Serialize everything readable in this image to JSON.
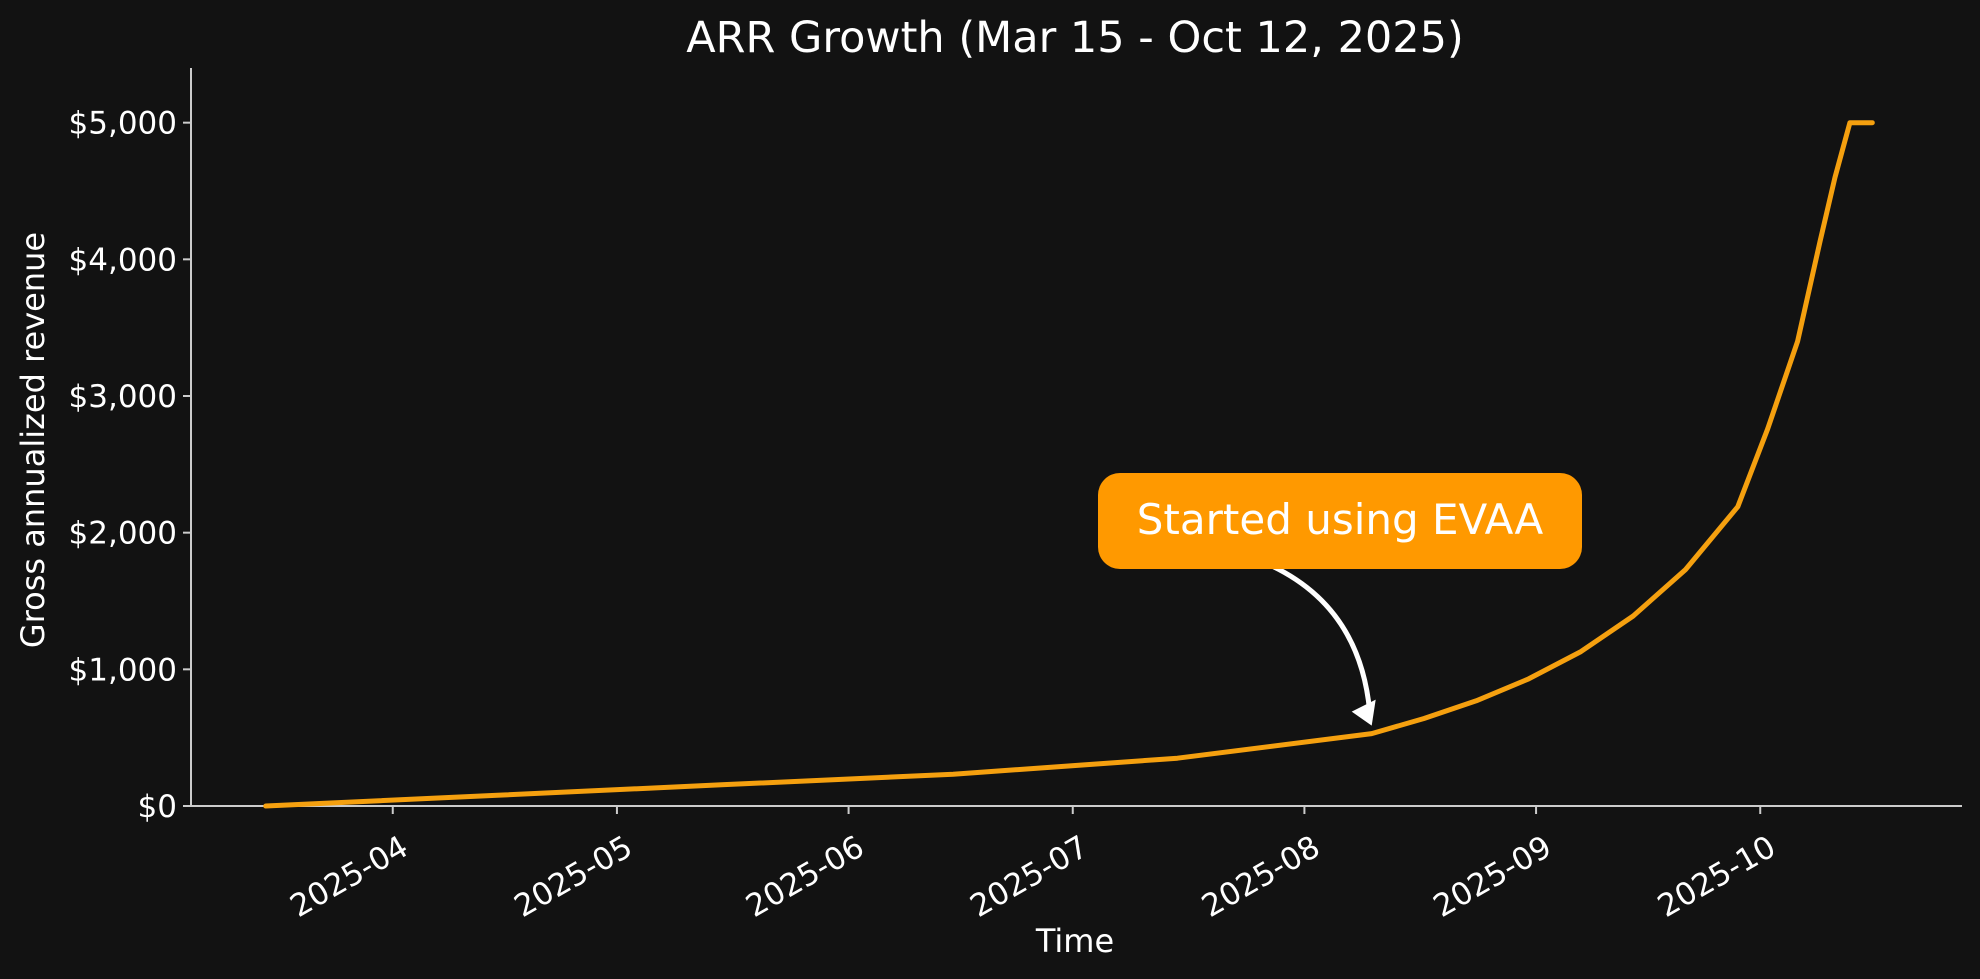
{
  "chart_data": {
    "type": "line",
    "title": "ARR Growth (Mar 15 - Oct 12, 2025)",
    "xlabel": "Time",
    "ylabel": "Gross annualized revenue",
    "x_ticks": [
      "2025-04",
      "2025-05",
      "2025-06",
      "2025-07",
      "2025-08",
      "2025-09",
      "2025-10"
    ],
    "y_ticks": [
      "$0",
      "$1,000",
      "$2,000",
      "$3,000",
      "$4,000",
      "$5,000"
    ],
    "y_tick_values": [
      0,
      1000,
      2000,
      3000,
      4000,
      5000
    ],
    "xlim": [
      "2025-03-05",
      "2025-10-28"
    ],
    "ylim": [
      0,
      5400
    ],
    "grid": false,
    "series": [
      {
        "color": "#f5a00f",
        "points": [
          {
            "x": "2025-03-15",
            "y": 0
          },
          {
            "x": "2025-04-15",
            "y": 78
          },
          {
            "x": "2025-05-15",
            "y": 155
          },
          {
            "x": "2025-06-15",
            "y": 233
          },
          {
            "x": "2025-07-15",
            "y": 350
          },
          {
            "x": "2025-08-10",
            "y": 530
          },
          {
            "x": "2025-08-17",
            "y": 640
          },
          {
            "x": "2025-08-24",
            "y": 770
          },
          {
            "x": "2025-08-31",
            "y": 930
          },
          {
            "x": "2025-09-07",
            "y": 1130
          },
          {
            "x": "2025-09-14",
            "y": 1390
          },
          {
            "x": "2025-09-21",
            "y": 1730
          },
          {
            "x": "2025-09-28",
            "y": 2190
          },
          {
            "x": "2025-10-02",
            "y": 2760
          },
          {
            "x": "2025-10-06",
            "y": 3400
          },
          {
            "x": "2025-10-09",
            "y": 4130
          },
          {
            "x": "2025-10-11",
            "y": 4600
          },
          {
            "x": "2025-10-13",
            "y": 5000
          },
          {
            "x": "2025-10-16",
            "y": 5000
          }
        ]
      }
    ],
    "annotation": {
      "text": "Started using EVAA",
      "x": "2025-08-10",
      "y": 530,
      "box_color": "#ff9900",
      "arrow_color": "#ffffff"
    },
    "colors": {
      "background": "#121212",
      "axis": "#cccccc",
      "text": "#ffffff",
      "line": "#f5a00f"
    }
  }
}
